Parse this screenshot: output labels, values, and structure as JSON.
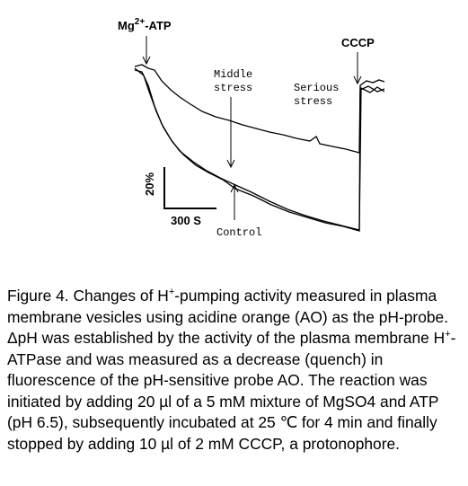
{
  "figure": {
    "mg_atp": {
      "base": "Mg",
      "sup": "2+",
      "rest": "-ATP"
    },
    "cccp": "CCCP",
    "middle_stress": [
      "Middle",
      "stress"
    ],
    "serious_stress": [
      "Serious",
      "stress"
    ],
    "scale_y": "20%",
    "scale_x": "300 S",
    "control": "Control"
  },
  "caption": [
    "Figure 4. Changes of H",
    "+",
    "-pumping activity measured in plasma membrane vesicles using acidine orange (AO) as the pH-probe. ΔpH was established by the activity of the plasma membrane H",
    "+",
    "-ATPase and was measured as a decrease (quench) in fluorescence of the pH-sensitive probe AO. The reaction was initiated by adding 20 µl of a 5 mM mixture of MgSO4 and ATP (pH 6.5), subsequently incubated at 25 ℃ for 4 min and finally stopped by adding 10 µl of 2 mM CCCP, a protonophore."
  ]
}
